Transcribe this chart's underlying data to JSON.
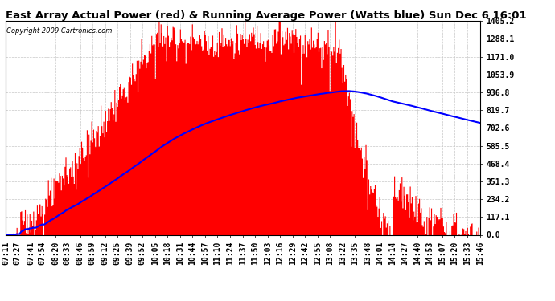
{
  "title": "East Array Actual Power (red) & Running Average Power (Watts blue) Sun Dec 6 16:01",
  "copyright": "Copyright 2009 Cartronics.com",
  "background_color": "#ffffff",
  "plot_bg_color": "#ffffff",
  "y_max": 1405.2,
  "y_min": 0.0,
  "y_ticks": [
    0.0,
    117.1,
    234.2,
    351.3,
    468.4,
    585.5,
    702.6,
    819.7,
    936.8,
    1053.9,
    1171.0,
    1288.1,
    1405.2
  ],
  "x_labels": [
    "07:11",
    "07:27",
    "07:41",
    "07:54",
    "08:20",
    "08:33",
    "08:46",
    "08:59",
    "09:12",
    "09:25",
    "09:39",
    "09:52",
    "10:05",
    "10:18",
    "10:31",
    "10:44",
    "10:57",
    "11:10",
    "11:24",
    "11:37",
    "11:50",
    "12:03",
    "12:16",
    "12:29",
    "12:42",
    "12:55",
    "13:08",
    "13:22",
    "13:35",
    "13:48",
    "14:01",
    "14:14",
    "14:27",
    "14:40",
    "14:53",
    "15:07",
    "15:20",
    "15:33",
    "15:46"
  ],
  "red_color": "#ff0000",
  "blue_color": "#0000ff",
  "grid_color": "#c8c8c8",
  "title_fontsize": 9.5,
  "tick_fontsize": 7
}
